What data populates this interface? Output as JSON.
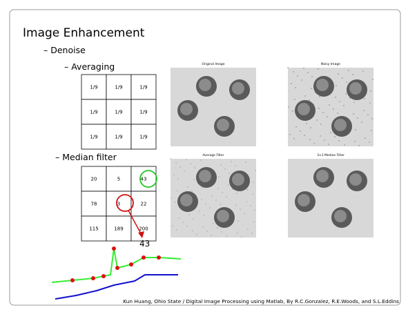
{
  "title": "Image Enhancement",
  "bullets": [
    "– Denoise",
    "– Averaging",
    "– Median filter"
  ],
  "averaging_kernel": [
    [
      "1/9",
      "1/9",
      "1/9"
    ],
    [
      "1/9",
      "1/9",
      "1/9"
    ],
    [
      "1/9",
      "1/9",
      "1/9"
    ]
  ],
  "median_grid": [
    [
      20,
      5,
      43
    ],
    [
      78,
      3,
      22
    ],
    [
      115,
      189,
      200
    ]
  ],
  "median_result": 43,
  "images": [
    "Original Image",
    "Noisy Image",
    "Average Filter",
    "3×3 Median Filter"
  ],
  "footer": "Kun Huang, Ohio State / Digital Image Processing using Matlab, By R.C.Gonzalez, R.E.Woods, and S.L.Eddins"
}
